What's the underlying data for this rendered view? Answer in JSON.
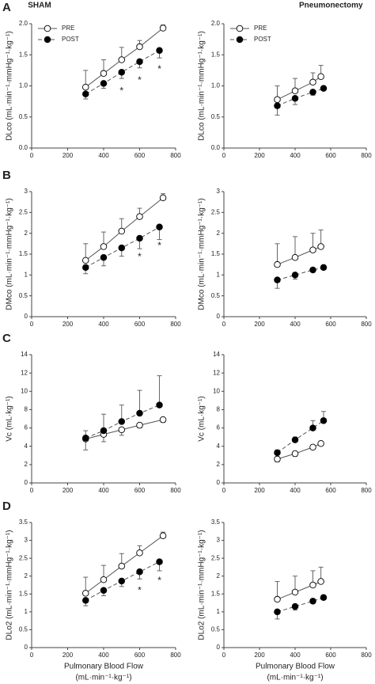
{
  "chart_data": [
    {
      "type": "line",
      "title": "SHAM",
      "panel_label": "A",
      "ylabel": "DLco (mL·min⁻¹·mmHg⁻¹·kg⁻¹)",
      "legend": "top-left",
      "xlim": [
        0,
        800
      ],
      "xticks": [
        0,
        200,
        400,
        600,
        800
      ],
      "ylim": [
        0,
        2
      ],
      "yticks": [
        {
          "value": 0,
          "label": "0.0"
        },
        {
          "value": 0.5,
          "label": "0.5"
        },
        {
          "value": 1,
          "label": "1.0"
        },
        {
          "value": 1.5,
          "label": "1.5"
        },
        {
          "value": 2,
          "label": "2.0"
        }
      ],
      "annotations": [
        "*",
        "*",
        "*"
      ],
      "series": [
        {
          "name": "PRE",
          "color": "#ffffff",
          "dash": false,
          "error_side": "up",
          "x": [
            300,
            400,
            500,
            600,
            730
          ],
          "values": [
            0.98,
            1.2,
            1.42,
            1.63,
            1.93
          ],
          "errors": [
            0.27,
            0.22,
            0.2,
            0.1,
            0.05
          ]
        },
        {
          "name": "POST",
          "color": "#000000",
          "dash": true,
          "error_side": "down",
          "x": [
            300,
            400,
            500,
            600,
            710
          ],
          "values": [
            0.87,
            1.04,
            1.22,
            1.39,
            1.57
          ],
          "errors": [
            0.08,
            0.08,
            0.1,
            0.1,
            0.12
          ]
        }
      ]
    },
    {
      "type": "line",
      "title": "Pneumonectomy",
      "ylabel": "DLco (mL·min⁻¹·mmHg⁻¹·kg⁻¹)",
      "legend": "top-left",
      "xlim": [
        0,
        800
      ],
      "xticks": [
        0,
        200,
        400,
        600,
        800
      ],
      "ylim": [
        0,
        2
      ],
      "yticks": [
        {
          "value": 0,
          "label": "0.0"
        },
        {
          "value": 0.5,
          "label": "0.5"
        },
        {
          "value": 1,
          "label": "1.0"
        },
        {
          "value": 1.5,
          "label": "1.5"
        },
        {
          "value": 2,
          "label": "2.0"
        }
      ],
      "series": [
        {
          "name": "PRE",
          "color": "#ffffff",
          "dash": false,
          "error_side": "up",
          "x": [
            300,
            400,
            500,
            545
          ],
          "values": [
            0.78,
            0.92,
            1.06,
            1.15
          ],
          "errors": [
            0.22,
            0.2,
            0.15,
            0.18
          ]
        },
        {
          "name": "POST",
          "color": "#000000",
          "dash": true,
          "error_side": "down",
          "x": [
            300,
            400,
            500,
            560
          ],
          "values": [
            0.68,
            0.8,
            0.9,
            0.96
          ],
          "errors": [
            0.15,
            0.1,
            0.05,
            0.03
          ]
        }
      ]
    },
    {
      "type": "line",
      "panel_label": "B",
      "ylabel": "DMco (mL·min⁻¹·mmHg⁻¹·kg⁻¹)",
      "xlim": [
        0,
        800
      ],
      "xticks": [
        0,
        200,
        400,
        600,
        800
      ],
      "ylim": [
        0,
        3
      ],
      "yticks": [
        0,
        0.5,
        1,
        1.5,
        2,
        2.5,
        3
      ],
      "annotations": [
        "*",
        "*"
      ],
      "series": [
        {
          "color": "#ffffff",
          "dash": false,
          "error_side": "up",
          "x": [
            300,
            400,
            500,
            600,
            730
          ],
          "values": [
            1.35,
            1.68,
            2.05,
            2.4,
            2.85
          ],
          "errors": [
            0.4,
            0.35,
            0.3,
            0.2,
            0.1
          ]
        },
        {
          "color": "#000000",
          "dash": true,
          "error_side": "down",
          "x": [
            300,
            400,
            500,
            600,
            710
          ],
          "values": [
            1.18,
            1.42,
            1.65,
            1.88,
            2.15
          ],
          "errors": [
            0.15,
            0.2,
            0.2,
            0.25,
            0.3
          ]
        }
      ]
    },
    {
      "type": "line",
      "ylabel": "DMco (mL·min⁻¹·mmHg⁻¹·kg⁻¹)",
      "xlim": [
        0,
        800
      ],
      "xticks": [
        0,
        200,
        400,
        600,
        800
      ],
      "ylim": [
        0,
        3
      ],
      "yticks": [
        0,
        0.5,
        1,
        1.5,
        2,
        2.5,
        3
      ],
      "series": [
        {
          "color": "#ffffff",
          "dash": false,
          "error_side": "up",
          "x": [
            300,
            400,
            500,
            545
          ],
          "values": [
            1.25,
            1.42,
            1.6,
            1.68
          ],
          "errors": [
            0.5,
            0.5,
            0.4,
            0.4
          ]
        },
        {
          "color": "#000000",
          "dash": true,
          "error_side": "down",
          "x": [
            300,
            400,
            500,
            560
          ],
          "values": [
            0.88,
            1.0,
            1.12,
            1.18
          ],
          "errors": [
            0.2,
            0.1,
            0.05,
            0.03
          ]
        }
      ]
    },
    {
      "type": "line",
      "panel_label": "C",
      "ylabel": "Vc (mL·kg⁻¹)",
      "xlim": [
        0,
        800
      ],
      "xticks": [
        0,
        200,
        400,
        600,
        800
      ],
      "ylim": [
        0,
        14
      ],
      "yticks": [
        0,
        2,
        4,
        6,
        8,
        10,
        12,
        14
      ],
      "series": [
        {
          "color": "#ffffff",
          "dash": false,
          "error_side": "down",
          "x": [
            300,
            400,
            500,
            600,
            730
          ],
          "values": [
            4.8,
            5.3,
            5.8,
            6.3,
            6.9
          ],
          "errors": [
            1.2,
            0.8,
            0.6,
            0.3,
            0.3
          ]
        },
        {
          "color": "#000000",
          "dash": true,
          "error_side": "up",
          "x": [
            300,
            400,
            500,
            600,
            710
          ],
          "values": [
            4.9,
            5.7,
            6.7,
            7.6,
            8.5
          ],
          "errors": [
            0.8,
            1.8,
            1.8,
            2.5,
            3.2
          ]
        }
      ]
    },
    {
      "type": "line",
      "ylabel": "Vc (mL·kg⁻¹)",
      "xlim": [
        0,
        800
      ],
      "xticks": [
        0,
        200,
        400,
        600,
        800
      ],
      "ylim": [
        0,
        14
      ],
      "yticks": [
        0,
        2,
        4,
        6,
        8,
        10,
        12,
        14
      ],
      "series": [
        {
          "color": "#ffffff",
          "dash": false,
          "error_side": "down",
          "x": [
            300,
            400,
            500,
            545
          ],
          "values": [
            2.6,
            3.2,
            3.9,
            4.3
          ],
          "errors": [
            0.3,
            0.3,
            0.2,
            0.2
          ]
        },
        {
          "color": "#000000",
          "dash": true,
          "error_side": "up",
          "x": [
            300,
            400,
            500,
            560
          ],
          "values": [
            3.3,
            4.7,
            6.0,
            6.8
          ],
          "errors": [
            0.3,
            0.3,
            0.8,
            1.0
          ]
        }
      ]
    },
    {
      "type": "line",
      "panel_label": "D",
      "ylabel": "DLo2 (mL·min⁻¹·mmHg⁻¹·kg⁻¹)",
      "xlabel": [
        "Pulmonary Blood Flow",
        "(mL·min⁻¹·kg⁻¹)"
      ],
      "xlim": [
        0,
        800
      ],
      "xticks": [
        0,
        200,
        400,
        600,
        800
      ],
      "ylim": [
        0,
        3.5
      ],
      "yticks": [
        0,
        0.5,
        1,
        1.5,
        2,
        2.5,
        3,
        3.5
      ],
      "annotations": [
        "*",
        "*"
      ],
      "series": [
        {
          "color": "#ffffff",
          "dash": false,
          "error_side": "up",
          "x": [
            300,
            400,
            500,
            600,
            730
          ],
          "values": [
            1.52,
            1.9,
            2.28,
            2.65,
            3.13
          ],
          "errors": [
            0.45,
            0.4,
            0.35,
            0.2,
            0.1
          ]
        },
        {
          "color": "#000000",
          "dash": true,
          "error_side": "down",
          "x": [
            300,
            400,
            500,
            600,
            710
          ],
          "values": [
            1.32,
            1.6,
            1.86,
            2.12,
            2.4
          ],
          "errors": [
            0.15,
            0.15,
            0.15,
            0.2,
            0.25
          ]
        }
      ]
    },
    {
      "type": "line",
      "ylabel": "DLo2 (mL·min⁻¹·mmHg⁻¹·kg⁻¹)",
      "xlabel": [
        "Pulmonary Blood Flow",
        "(mL·min⁻¹·kg⁻¹)"
      ],
      "xlim": [
        0,
        800
      ],
      "xticks": [
        0,
        200,
        400,
        600,
        800
      ],
      "ylim": [
        0,
        3.5
      ],
      "yticks": [
        0,
        0.5,
        1,
        1.5,
        2,
        2.5,
        3,
        3.5
      ],
      "series": [
        {
          "color": "#ffffff",
          "dash": false,
          "error_side": "up",
          "x": [
            300,
            400,
            500,
            545
          ],
          "values": [
            1.35,
            1.55,
            1.75,
            1.85
          ],
          "errors": [
            0.5,
            0.45,
            0.4,
            0.4
          ]
        },
        {
          "color": "#000000",
          "dash": true,
          "error_side": "down",
          "x": [
            300,
            400,
            500,
            560
          ],
          "values": [
            1.0,
            1.15,
            1.3,
            1.4
          ],
          "errors": [
            0.2,
            0.1,
            0.05,
            0.05
          ]
        }
      ]
    }
  ]
}
